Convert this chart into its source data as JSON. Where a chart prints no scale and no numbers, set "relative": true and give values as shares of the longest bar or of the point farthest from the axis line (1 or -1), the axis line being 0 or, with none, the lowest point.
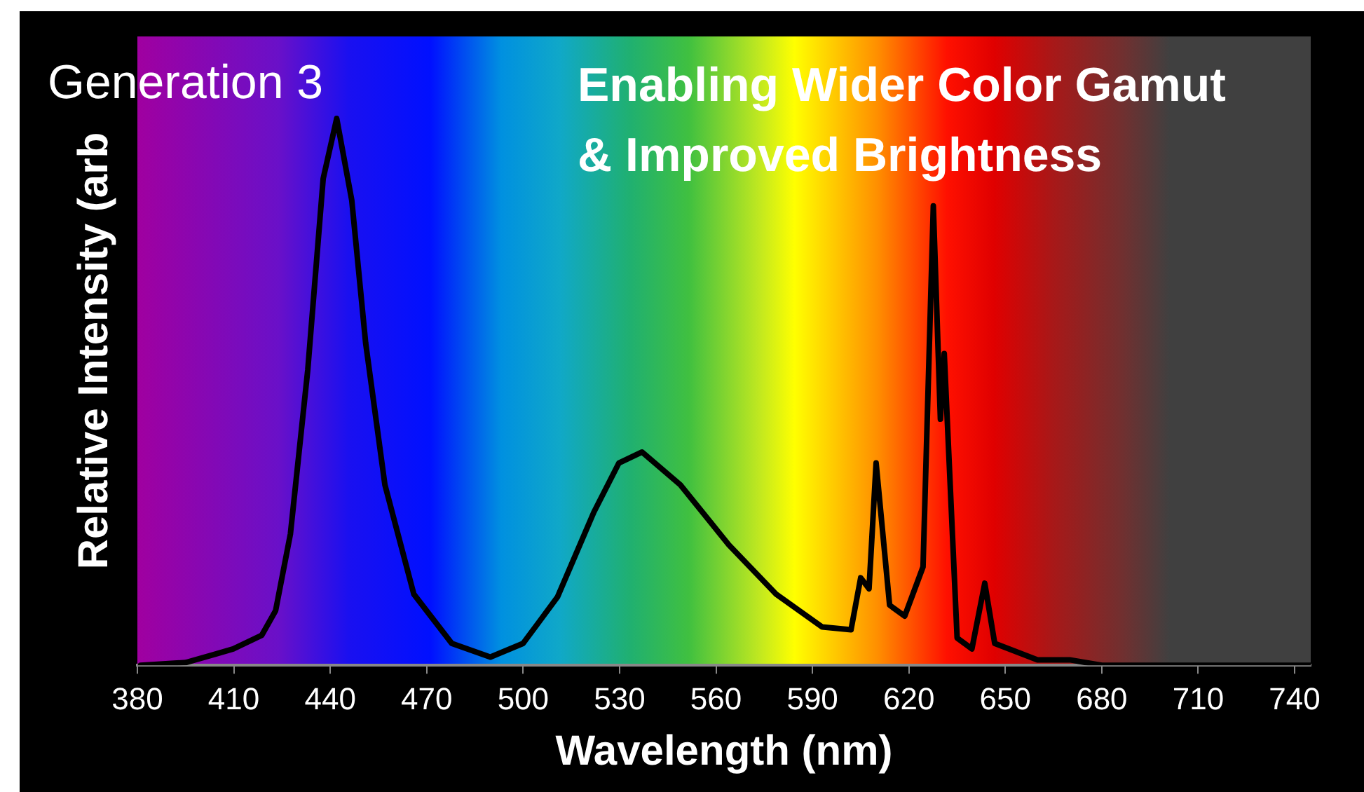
{
  "chart_data": {
    "type": "line",
    "relative": true,
    "title": "Enabling Wider Color Gamut & Improved Brightness",
    "annotations": [
      "Generation 3"
    ],
    "xlabel": "Wavelength (nm)",
    "ylabel": "Relative Intensity (arb",
    "xlim": [
      380,
      745
    ],
    "xticks": [
      380,
      410,
      440,
      470,
      500,
      530,
      560,
      590,
      620,
      650,
      680,
      710,
      740
    ],
    "grid": false,
    "legend": false,
    "marker": "none",
    "line_style": "solid",
    "series": [
      {
        "color": "#000000",
        "x": [
          381,
          395,
          404,
          409.8,
          418.7,
          423,
          427.6,
          433,
          437.8,
          442,
          446.7,
          451,
          457,
          466,
          477.8,
          489.8,
          500,
          510.7,
          522,
          529.8,
          537,
          548.9,
          564,
          578.7,
          593,
          602,
          605,
          607.6,
          609.8,
          614,
          618.7,
          624.4,
          627.6,
          629.8,
          631,
          635,
          639.6,
          643.6,
          646.7,
          660,
          670,
          680,
          700,
          745
        ],
        "values": [
          0,
          0.005,
          0.02,
          0.03,
          0.055,
          0.1,
          0.24,
          0.54,
          0.89,
          1,
          0.85,
          0.59,
          0.33,
          0.13,
          0.04,
          0.015,
          0.04,
          0.125,
          0.28,
          0.37,
          0.39,
          0.33,
          0.22,
          0.13,
          0.07,
          0.065,
          0.16,
          0.14,
          0.37,
          0.11,
          0.09,
          0.18,
          0.84,
          0.45,
          0.57,
          0.05,
          0.03,
          0.15,
          0.04,
          0.01,
          0.01,
          0,
          0,
          0
        ]
      }
    ]
  }
}
